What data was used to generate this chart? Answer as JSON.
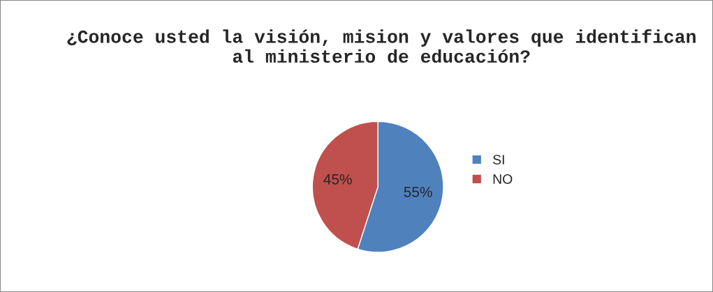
{
  "chart_data": {
    "type": "pie",
    "title": "¿Conoce usted la visión, mision y valores que identifican al ministerio de educación?",
    "categories": [
      "SI",
      "NO"
    ],
    "values": [
      55,
      45
    ],
    "colors": [
      "#4f81bd",
      "#c0504d"
    ],
    "value_labels": [
      "55%",
      "45%"
    ],
    "legend": "right"
  }
}
